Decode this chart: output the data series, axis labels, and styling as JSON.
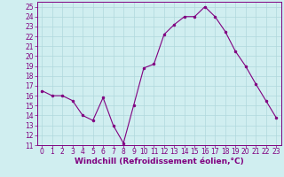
{
  "x": [
    0,
    1,
    2,
    3,
    4,
    5,
    6,
    7,
    8,
    9,
    10,
    11,
    12,
    13,
    14,
    15,
    16,
    17,
    18,
    19,
    20,
    21,
    22,
    23
  ],
  "y": [
    16.5,
    16.0,
    16.0,
    15.5,
    14.0,
    13.5,
    15.8,
    13.0,
    11.2,
    15.0,
    18.8,
    19.2,
    22.2,
    23.2,
    24.0,
    24.0,
    25.0,
    24.0,
    22.5,
    20.5,
    19.0,
    17.2,
    15.5,
    13.8
  ],
  "xlim": [
    -0.5,
    23.5
  ],
  "ylim": [
    11,
    25.5
  ],
  "yticks": [
    11,
    12,
    13,
    14,
    15,
    16,
    17,
    18,
    19,
    20,
    21,
    22,
    23,
    24,
    25
  ],
  "xticks": [
    0,
    1,
    2,
    3,
    4,
    5,
    6,
    7,
    8,
    9,
    10,
    11,
    12,
    13,
    14,
    15,
    16,
    17,
    18,
    19,
    20,
    21,
    22,
    23
  ],
  "xlabel": "Windchill (Refroidissement éolien,°C)",
  "line_color": "#800080",
  "marker_color": "#800080",
  "bg_color": "#d0eef0",
  "grid_color": "#b0d8dc",
  "axis_label_color": "#800080",
  "tick_label_color": "#800080",
  "spine_color": "#800080",
  "font_size_label": 6.5,
  "font_size_tick": 5.5
}
